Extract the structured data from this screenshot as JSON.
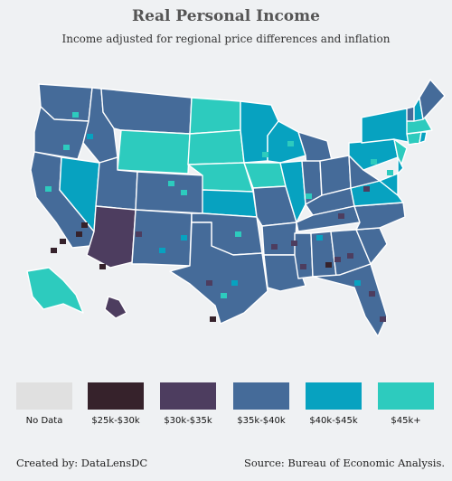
{
  "title": "Real Personal Income",
  "subtitle": "Income adjusted for regional price differences and inflation",
  "legend": [
    {
      "label": "No Data",
      "color": "#e0e0e0"
    },
    {
      "label": "$25k-$30k",
      "color": "#36222b"
    },
    {
      "label": "$30k-$35k",
      "color": "#4d3d5f"
    },
    {
      "label": "$35k-$40k",
      "color": "#456b99"
    },
    {
      "label": "$40k-$45k",
      "color": "#07a2c0"
    },
    {
      "label": "$45k+",
      "color": "#2dcbbe"
    }
  ],
  "credits": {
    "left": "Created by: DataLensDC",
    "right": "Source: Bureau of Economic Analysis."
  },
  "map_data": {
    "type": "choropleth",
    "geography": "US counties",
    "state_income": {
      "WA": "$35k-$40k",
      "OR": "$35k-$40k",
      "CA": "$35k-$40k",
      "NV": "$40k-$45k",
      "ID": "$35k-$40k",
      "MT": "$35k-$40k",
      "WY": "$45k+",
      "UT": "$35k-$40k",
      "AZ": "$30k-$35k",
      "CO": "$35k-$40k",
      "NM": "$35k-$40k",
      "ND": "$45k+",
      "SD": "$45k+",
      "NE": "$45k+",
      "KS": "$40k-$45k",
      "OK": "$35k-$40k",
      "TX": "$35k-$40k",
      "MN": "$40k-$45k",
      "IA": "$45k+",
      "MO": "$35k-$40k",
      "AR": "$35k-$40k",
      "LA": "$35k-$40k",
      "WI": "$40k-$45k",
      "IL": "$40k-$45k",
      "MI": "$35k-$40k",
      "IN": "$35k-$40k",
      "OH": "$35k-$40k",
      "KY": "$35k-$40k",
      "TN": "$35k-$40k",
      "MS": "$35k-$40k",
      "AL": "$35k-$40k",
      "GA": "$35k-$40k",
      "FL": "$35k-$40k",
      "SC": "$35k-$40k",
      "NC": "$35k-$40k",
      "VA": "$40k-$45k",
      "WV": "$35k-$40k",
      "PA": "$40k-$45k",
      "NY": "$40k-$45k",
      "NJ": "$45k+",
      "MD": "$40k-$45k",
      "DE": "$40k-$45k",
      "CT": "$45k+",
      "RI": "$40k-$45k",
      "MA": "$45k+",
      "VT": "$35k-$40k",
      "NH": "$40k-$45k",
      "ME": "$35k-$40k",
      "AK": "$45k+",
      "HI": "$30k-$35k"
    }
  }
}
